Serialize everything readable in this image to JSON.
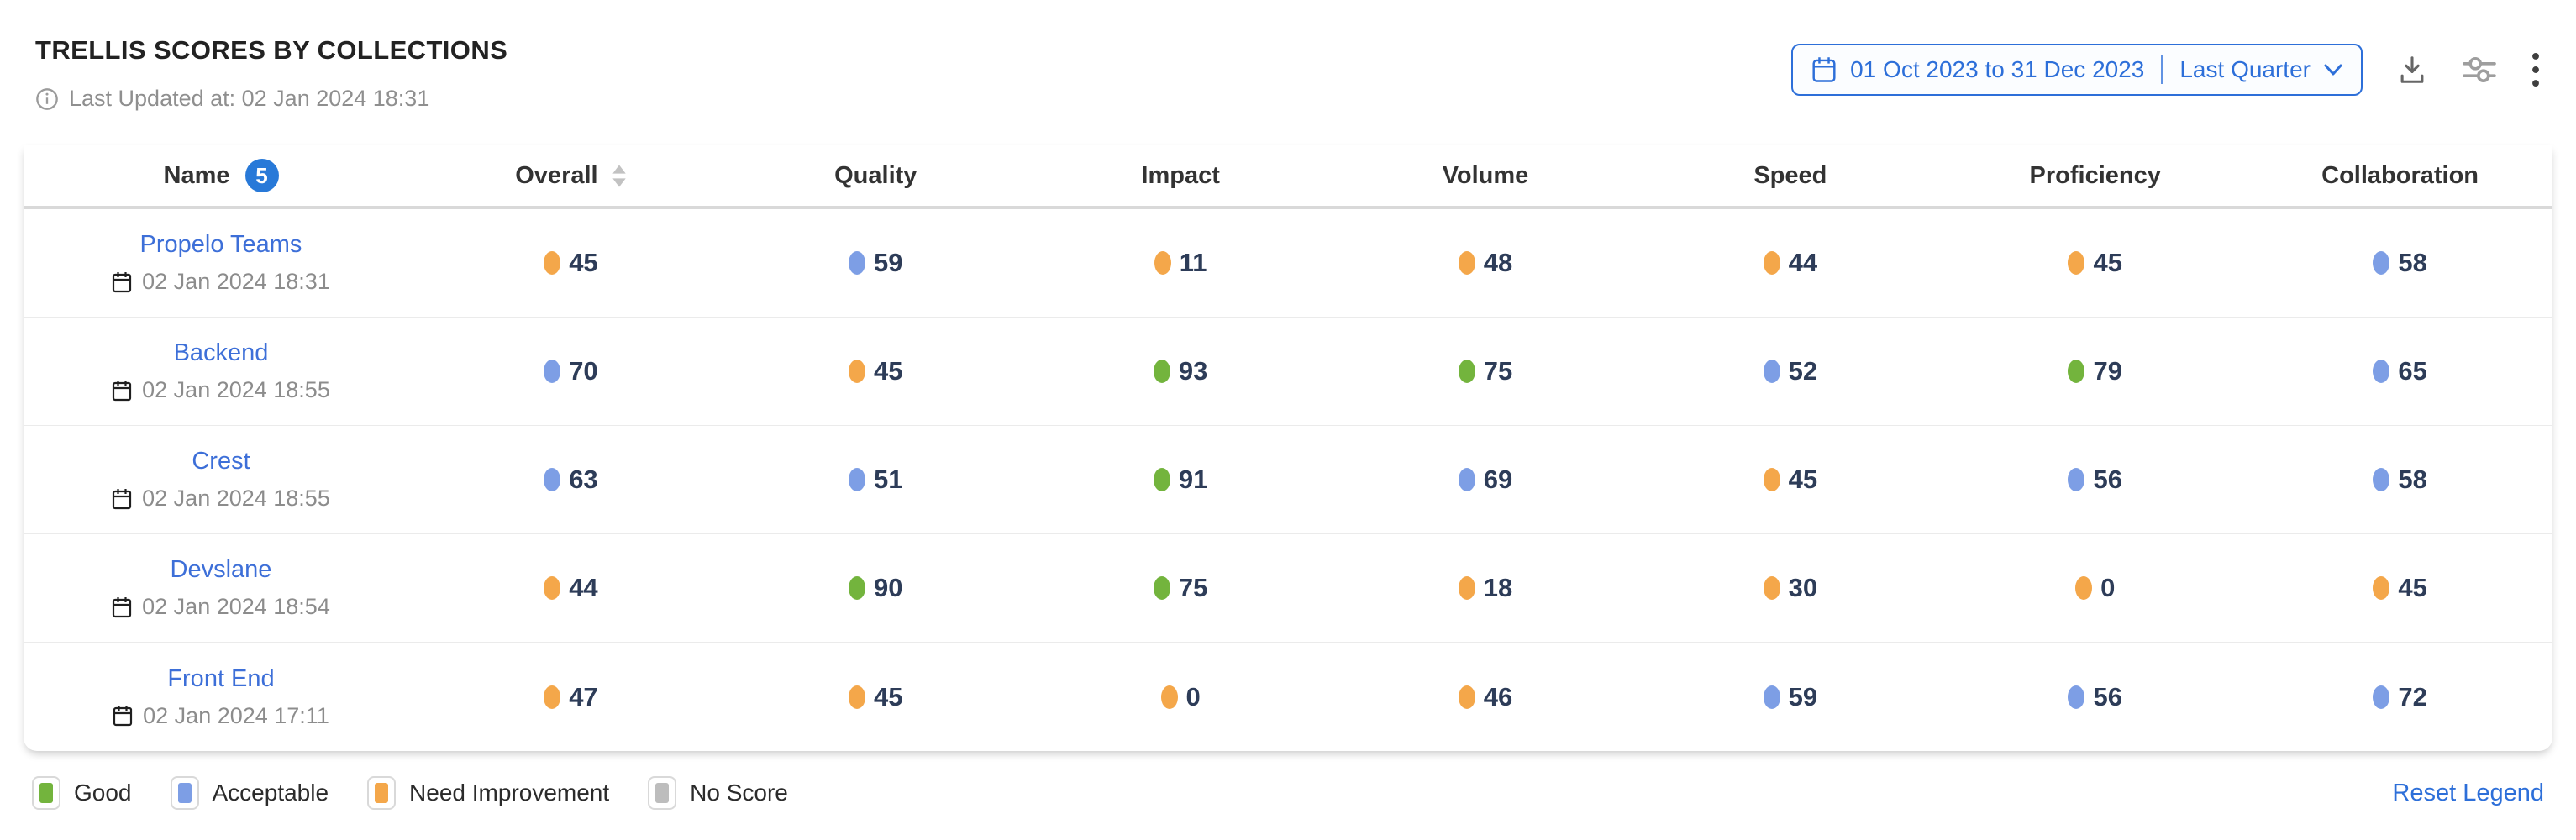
{
  "colors": {
    "accent": "#2d6fd9",
    "link": "#3d6fd8",
    "value_text": "#2d3c58",
    "good": "#73b43d",
    "acceptable": "#7d9ee5",
    "need-improvement": "#f4a74a",
    "no-score": "#bdbdbd"
  },
  "header": {
    "title": "TRELLIS SCORES BY COLLECTIONS",
    "last_updated": "Last Updated at: 02 Jan 2024 18:31",
    "date_range": {
      "range_text": "01 Oct 2023 to 31 Dec 2023",
      "preset_label": "Last Quarter"
    }
  },
  "table": {
    "name_badge_count": "5",
    "columns": [
      "Name",
      "Overall",
      "Quality",
      "Impact",
      "Volume",
      "Speed",
      "Proficiency",
      "Collaboration"
    ],
    "rows": [
      {
        "name": "Propelo Teams",
        "updated": "02 Jan 2024 18:31",
        "scores": [
          {
            "value": 45,
            "status": "need-improvement"
          },
          {
            "value": 59,
            "status": "acceptable"
          },
          {
            "value": 11,
            "status": "need-improvement"
          },
          {
            "value": 48,
            "status": "need-improvement"
          },
          {
            "value": 44,
            "status": "need-improvement"
          },
          {
            "value": 45,
            "status": "need-improvement"
          },
          {
            "value": 58,
            "status": "acceptable"
          }
        ]
      },
      {
        "name": "Backend",
        "updated": "02 Jan 2024 18:55",
        "scores": [
          {
            "value": 70,
            "status": "acceptable"
          },
          {
            "value": 45,
            "status": "need-improvement"
          },
          {
            "value": 93,
            "status": "good"
          },
          {
            "value": 75,
            "status": "good"
          },
          {
            "value": 52,
            "status": "acceptable"
          },
          {
            "value": 79,
            "status": "good"
          },
          {
            "value": 65,
            "status": "acceptable"
          }
        ]
      },
      {
        "name": "Crest",
        "updated": "02 Jan 2024 18:55",
        "scores": [
          {
            "value": 63,
            "status": "acceptable"
          },
          {
            "value": 51,
            "status": "acceptable"
          },
          {
            "value": 91,
            "status": "good"
          },
          {
            "value": 69,
            "status": "acceptable"
          },
          {
            "value": 45,
            "status": "need-improvement"
          },
          {
            "value": 56,
            "status": "acceptable"
          },
          {
            "value": 58,
            "status": "acceptable"
          }
        ]
      },
      {
        "name": "Devslane",
        "updated": "02 Jan 2024 18:54",
        "scores": [
          {
            "value": 44,
            "status": "need-improvement"
          },
          {
            "value": 90,
            "status": "good"
          },
          {
            "value": 75,
            "status": "good"
          },
          {
            "value": 18,
            "status": "need-improvement"
          },
          {
            "value": 30,
            "status": "need-improvement"
          },
          {
            "value": 0,
            "status": "need-improvement"
          },
          {
            "value": 45,
            "status": "need-improvement"
          }
        ]
      },
      {
        "name": "Front End",
        "updated": "02 Jan 2024 17:11",
        "scores": [
          {
            "value": 47,
            "status": "need-improvement"
          },
          {
            "value": 45,
            "status": "need-improvement"
          },
          {
            "value": 0,
            "status": "need-improvement"
          },
          {
            "value": 46,
            "status": "need-improvement"
          },
          {
            "value": 59,
            "status": "acceptable"
          },
          {
            "value": 56,
            "status": "acceptable"
          },
          {
            "value": 72,
            "status": "acceptable"
          }
        ]
      }
    ]
  },
  "legend": {
    "items": [
      {
        "label": "Good",
        "status": "good"
      },
      {
        "label": "Acceptable",
        "status": "acceptable"
      },
      {
        "label": "Need Improvement",
        "status": "need-improvement"
      },
      {
        "label": "No Score",
        "status": "no-score"
      }
    ],
    "reset_label": "Reset Legend"
  }
}
